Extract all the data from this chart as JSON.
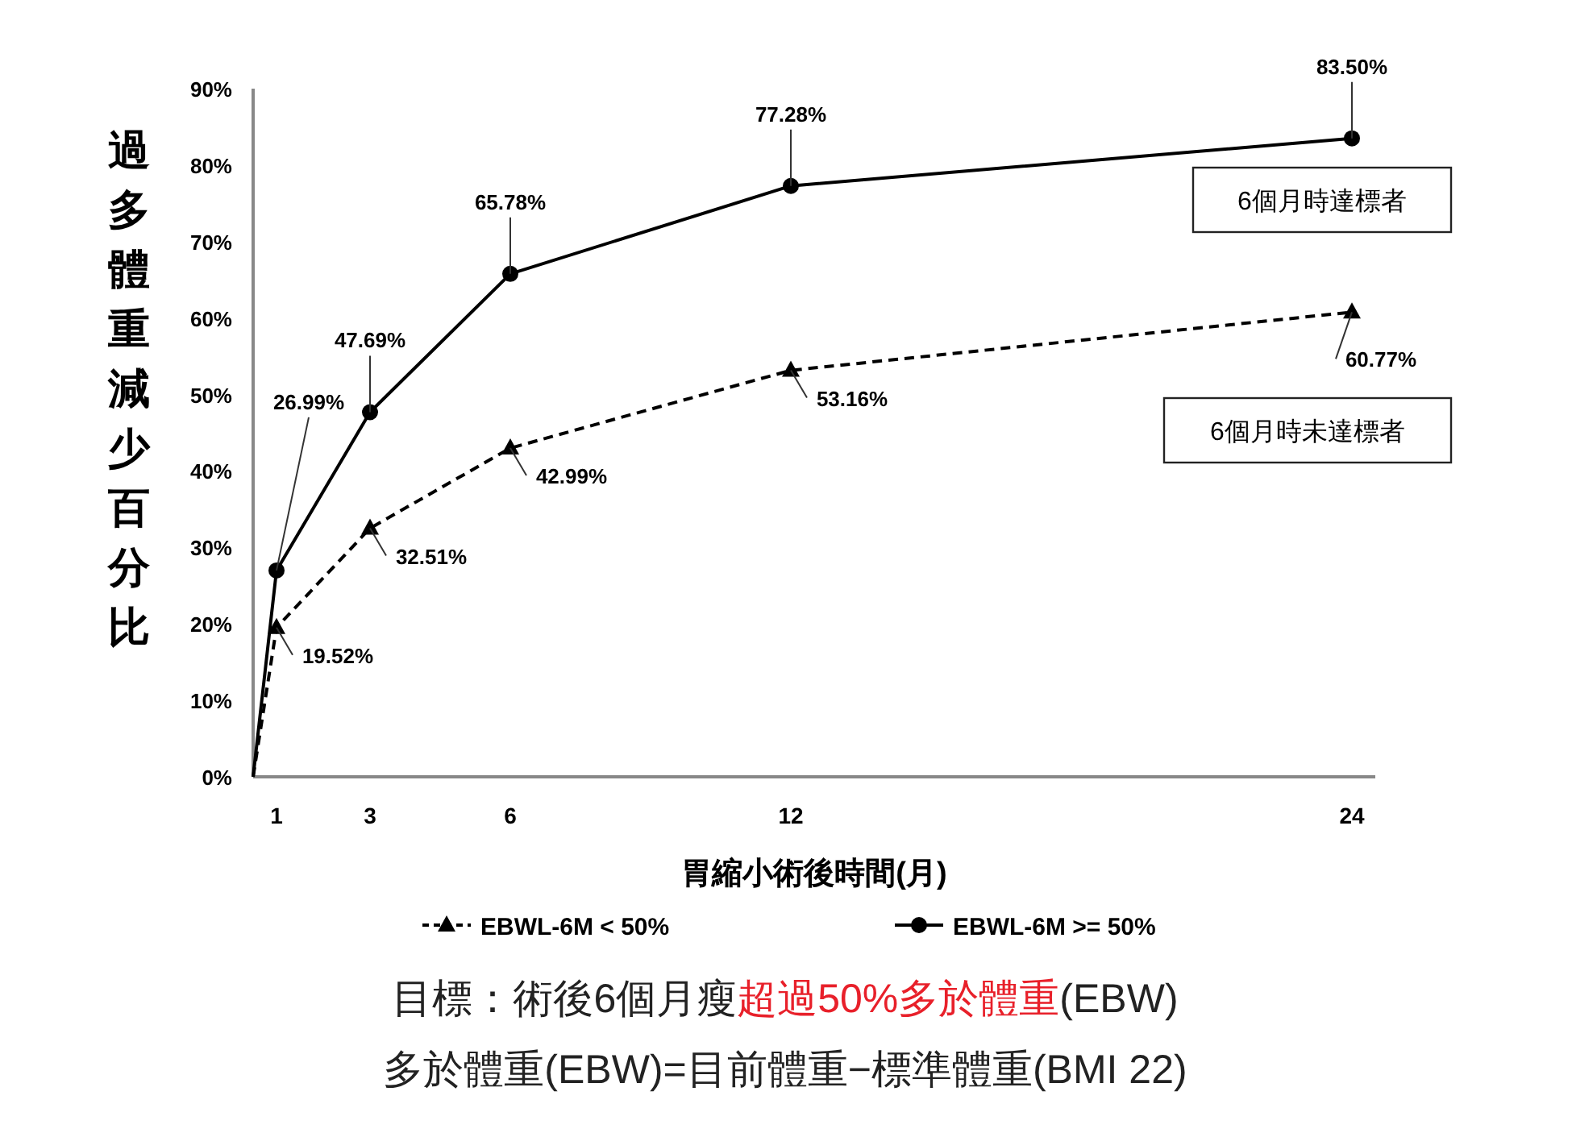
{
  "chart_data": {
    "type": "line",
    "xlabel": "胃縮小術後時間(月)",
    "ylabel": "過多體重減少百分比",
    "x": [
      0.5,
      1,
      3,
      6,
      12,
      24
    ],
    "xlim": [
      0.5,
      24.5
    ],
    "xticks": [
      {
        "value": 1,
        "label": "1"
      },
      {
        "value": 3,
        "label": "3"
      },
      {
        "value": 6,
        "label": "6"
      },
      {
        "value": 12,
        "label": "12"
      },
      {
        "value": 24,
        "label": "24"
      }
    ],
    "ylim": [
      0,
      90
    ],
    "yticks": [
      {
        "value": 0,
        "label": "0%"
      },
      {
        "value": 10,
        "label": "10%"
      },
      {
        "value": 20,
        "label": "20%"
      },
      {
        "value": 30,
        "label": "30%"
      },
      {
        "value": 40,
        "label": "40%"
      },
      {
        "value": 50,
        "label": "50%"
      },
      {
        "value": 60,
        "label": "60%"
      },
      {
        "value": 70,
        "label": "70%"
      },
      {
        "value": 80,
        "label": "80%"
      },
      {
        "value": 90,
        "label": "90%"
      }
    ],
    "series": [
      {
        "name": "EBWL-6M < 50%",
        "color": "#000000",
        "marker": "triangle",
        "line_style": "dashed",
        "values": [
          0,
          19.52,
          32.51,
          42.99,
          53.16,
          60.77
        ],
        "value_labels": [
          null,
          "19.52%",
          "32.51%",
          "42.99%",
          "53.16%",
          "60.77%"
        ]
      },
      {
        "name": "EBWL-6M >= 50%",
        "color": "#000000",
        "marker": "circle",
        "line_style": "solid",
        "values": [
          0,
          26.99,
          47.69,
          65.78,
          77.28,
          83.5
        ],
        "value_labels": [
          null,
          "26.99%",
          "47.69%",
          "65.78%",
          "77.28%",
          "83.50%"
        ]
      }
    ],
    "legend": "bottom",
    "grid": false,
    "annotations": [
      "6個月時達標者",
      "6個月時未達標者",
      "目標：術後6個月瘦**超過50%多於體重**(EBW)",
      "多於體重(EBW)=目前體重−標準體重(BMI 22)"
    ]
  }
}
